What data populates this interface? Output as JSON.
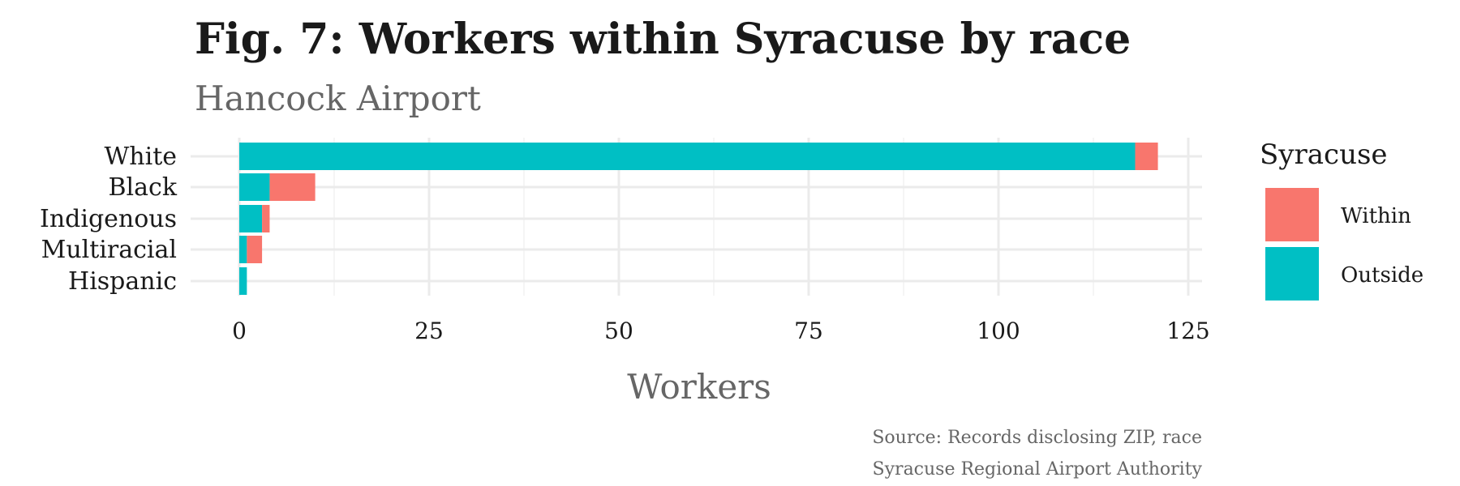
{
  "chart_data": {
    "type": "bar",
    "orientation": "horizontal",
    "stacked": true,
    "title": "Fig. 7: Workers within Syracuse by race",
    "subtitle": "Hancock Airport",
    "xlabel": "Workers",
    "ylabel": "",
    "categories": [
      "White",
      "Black",
      "Indigenous",
      "Multiracial",
      "Hispanic"
    ],
    "series": [
      {
        "name": "Outside",
        "color": "#00BFC4",
        "values": [
          118,
          4,
          3,
          1,
          1
        ]
      },
      {
        "name": "Within",
        "color": "#F8766D",
        "values": [
          3,
          6,
          1,
          2,
          0
        ]
      }
    ],
    "xlim": [
      0,
      125
    ],
    "xticks": [
      0,
      25,
      50,
      75,
      100,
      125
    ],
    "grid": true,
    "legend": {
      "title": "Syracuse",
      "position": "right",
      "entries": [
        {
          "name": "Within",
          "color": "#F8766D"
        },
        {
          "name": "Outside",
          "color": "#00BFC4"
        }
      ]
    },
    "caption": [
      "Source: Records disclosing ZIP, race",
      "Syracuse Regional Airport Authority"
    ]
  }
}
